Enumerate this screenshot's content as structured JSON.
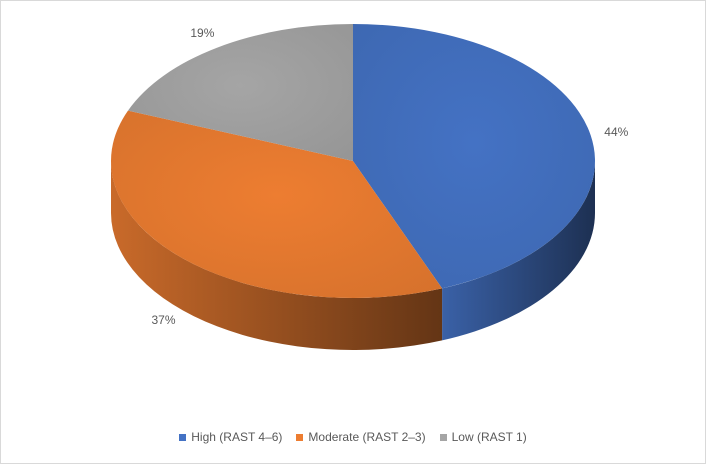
{
  "chart_data": {
    "type": "pie",
    "style": "3d",
    "legend_position": "bottom",
    "slices": [
      {
        "name": "High (RAST 4–6)",
        "value": 44,
        "label": "44%",
        "color": "#4472C4"
      },
      {
        "name": "Moderate (RAST 2–3)",
        "value": 37,
        "label": "37%",
        "color": "#ED7D31"
      },
      {
        "name": "Low (RAST 1)",
        "value": 19,
        "label": "19%",
        "color": "#A5A5A5"
      }
    ]
  }
}
